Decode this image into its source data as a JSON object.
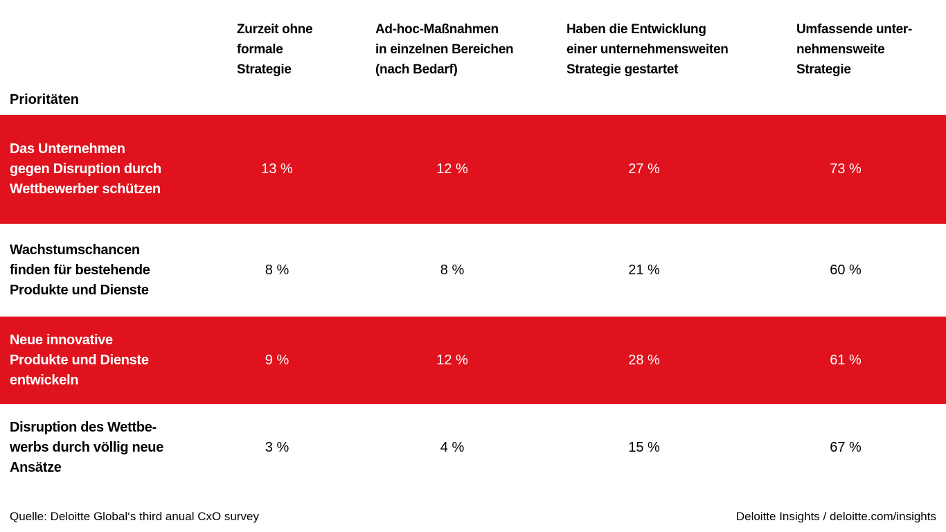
{
  "table": {
    "row_header_label": "Prioritäten",
    "columns": [
      {
        "label": "Zurzeit ohne\nformale\nStrategie"
      },
      {
        "label": "Ad-hoc-Maßnahmen\nin einzelnen Bereichen\n(nach Bedarf)"
      },
      {
        "label": "Haben die Entwicklung\neiner unternehmensweiten\nStrategie gestartet"
      },
      {
        "label": "Umfassende unter-\nnehmensweite\nStrategie"
      }
    ],
    "rows": [
      {
        "label": "Das Unternehmen\ngegen Disruption durch\nWettbewerber schützen",
        "values": [
          "13 %",
          "12 %",
          "27 %",
          "73 %"
        ],
        "highlighted": true
      },
      {
        "label": "Wachstumschancen\nfinden für bestehende\nProdukte und Dienste",
        "values": [
          "8 %",
          "8 %",
          "21 %",
          "60 %"
        ],
        "highlighted": false
      },
      {
        "label": "Neue innovative\nProdukte und Dienste\nentwickeln",
        "values": [
          "9 %",
          "12 %",
          "28 %",
          "61 %"
        ],
        "highlighted": true
      },
      {
        "label": "Disruption des Wettbe-\nwerbs durch völlig neue\nAnsätze",
        "values": [
          "3 %",
          "4 %",
          "15 %",
          "67 %"
        ],
        "highlighted": false
      }
    ]
  },
  "footer": {
    "source": "Quelle: Deloitte Global‘s third anual CxO survey",
    "brand": "Deloitte Insights / deloitte.com/insights"
  },
  "colors": {
    "accent_red": "#E0121D",
    "text_on_red": "#FFFFFF",
    "text_default": "#000000",
    "background": "#FFFFFF"
  },
  "chart_data": {
    "type": "table",
    "title": "",
    "row_axis_label": "Prioritäten",
    "unit": "%",
    "categories": [
      "Zurzeit ohne formale Strategie",
      "Ad-hoc-Maßnahmen in einzelnen Bereichen (nach Bedarf)",
      "Haben die Entwicklung einer unternehmensweiten Strategie gestartet",
      "Umfassende unternehmensweite Strategie"
    ],
    "series": [
      {
        "name": "Das Unternehmen gegen Disruption durch Wettbewerber schützen",
        "values": [
          13,
          12,
          27,
          73
        ]
      },
      {
        "name": "Wachstumschancen finden für bestehende Produkte und Dienste",
        "values": [
          8,
          8,
          21,
          60
        ]
      },
      {
        "name": "Neue innovative Produkte und Dienste entwickeln",
        "values": [
          9,
          12,
          28,
          61
        ]
      },
      {
        "name": "Disruption des Wettbewerbs durch völlig neue Ansätze",
        "values": [
          3,
          4,
          15,
          67
        ]
      }
    ]
  }
}
